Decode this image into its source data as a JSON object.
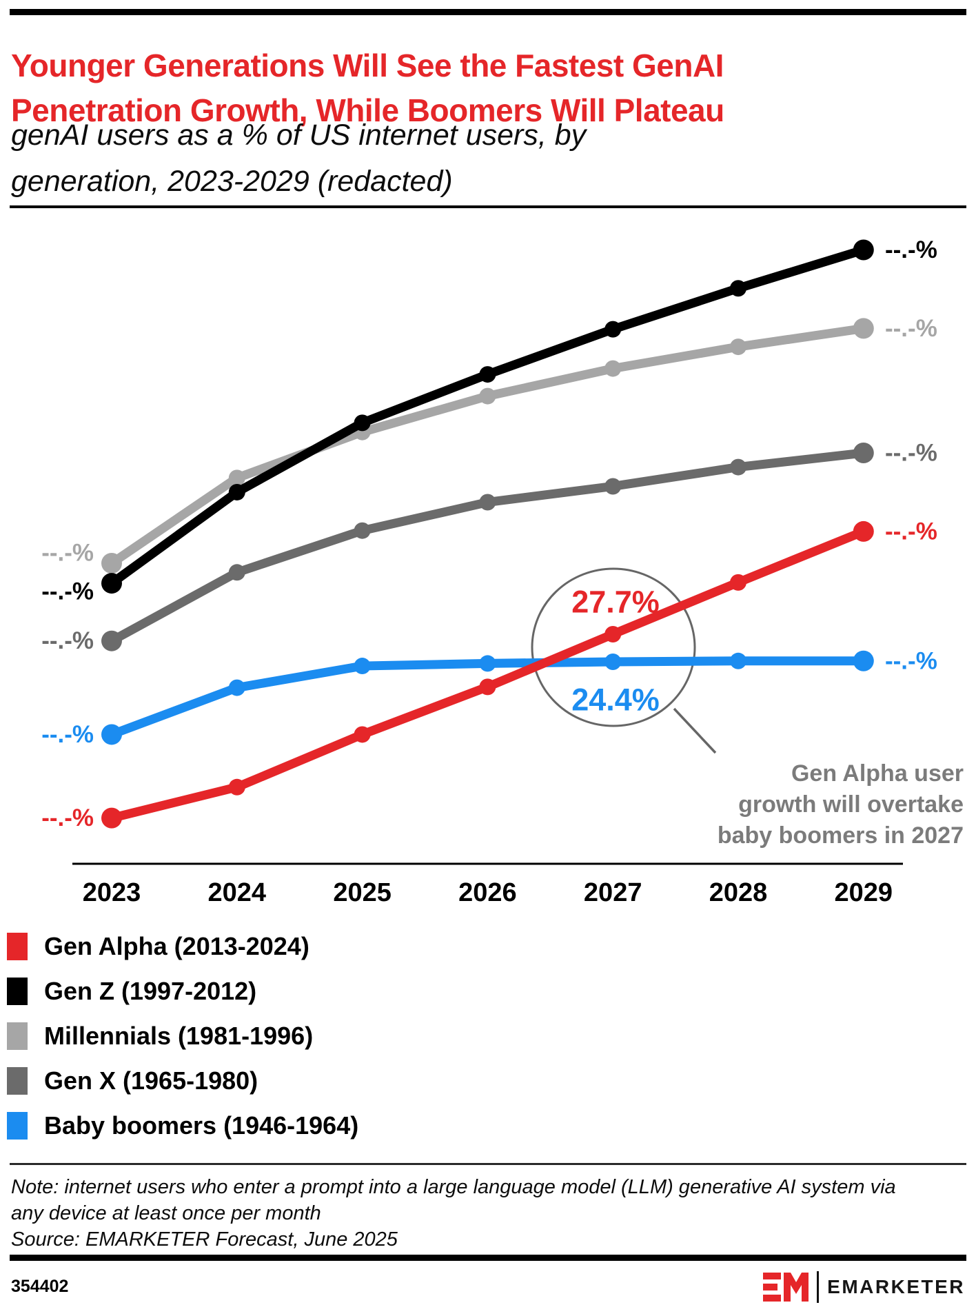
{
  "header": {
    "title": "Younger Generations Will See the Fastest GenAI Penetration Growth, While Boomers Will Plateau",
    "subtitle": "genAI users as a % of US internet users, by generation, 2023-2029 (redacted)"
  },
  "chart_data": {
    "type": "line",
    "title": "genAI users as a % of US internet users, by generation, 2023-2029 (redacted)",
    "x_labels": [
      "2023",
      "2024",
      "2025",
      "2026",
      "2027",
      "2028",
      "2029"
    ],
    "y_unit": "%",
    "ylim": [
      0,
      80
    ],
    "grid": false,
    "legend_position": "bottom-left",
    "redacted_label": "--.-%",
    "series": [
      {
        "name": "Gen Alpha (2013-2024)",
        "color": "#e52629",
        "values": [
          5.7,
          9.4,
          15.7,
          21.4,
          27.7,
          33.9,
          40.0
        ]
      },
      {
        "name": "Gen Z (1997-2012)",
        "color": "#000000",
        "values": [
          33.8,
          44.7,
          53.0,
          58.8,
          64.2,
          69.1,
          73.7
        ]
      },
      {
        "name": "Millennials (1981-1996)",
        "color": "#a6a6a6",
        "values": [
          36.2,
          46.4,
          51.9,
          56.2,
          59.5,
          62.1,
          64.3
        ]
      },
      {
        "name": "Gen X (1965-1980)",
        "color": "#6b6b6b",
        "values": [
          26.9,
          35.1,
          40.1,
          43.5,
          45.4,
          47.7,
          49.4
        ]
      },
      {
        "name": "Baby boomers (1946-1964)",
        "color": "#1b8cf0",
        "values": [
          15.7,
          21.3,
          23.9,
          24.2,
          24.4,
          24.5,
          24.5
        ]
      }
    ],
    "labeled_points": [
      {
        "series": "Gen Alpha (2013-2024)",
        "year": "2027",
        "label": "27.7%",
        "color": "#e52629"
      },
      {
        "series": "Baby boomers (1946-1964)",
        "year": "2027",
        "label": "24.4%",
        "color": "#1b8cf0"
      }
    ],
    "annotation": {
      "lines": [
        "Gen Alpha user",
        "growth will overtake",
        "baby boomers in 2027"
      ],
      "color": "#7b7b7b"
    }
  },
  "footnote": {
    "note": "Note: internet users who enter a prompt into a large language model (LLM) generative AI system via any device at least once per month",
    "source": "Source: EMARKETER Forecast, June 2025"
  },
  "footer": {
    "chart_id": "354402",
    "brand": "EMARKETER"
  }
}
